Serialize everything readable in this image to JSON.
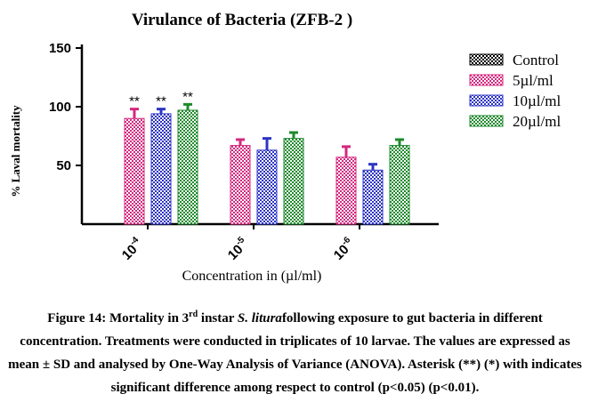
{
  "chart_data": {
    "type": "bar",
    "title": "Virulance of Bacteria (ZFB-2 )",
    "xlabel": "Concentration in (µl/ml)",
    "ylabel": "% Laval mortality",
    "ylim": [
      0,
      150
    ],
    "yticks": [
      "50",
      "100",
      "150"
    ],
    "categories": [
      {
        "base": "10",
        "exp": "-4"
      },
      {
        "base": "10",
        "exp": "-5"
      },
      {
        "base": "10",
        "exp": "-6"
      }
    ],
    "series": [
      {
        "name": "Control",
        "color": "#000000",
        "values": [
          0,
          0,
          0
        ],
        "errors": [
          0,
          0,
          0
        ],
        "annotations": [
          "",
          "",
          ""
        ]
      },
      {
        "name": "5µl/ml",
        "color": "#d4287f",
        "values": [
          90,
          67,
          57
        ],
        "errors": [
          8,
          5,
          9
        ],
        "annotations": [
          "**",
          "",
          ""
        ]
      },
      {
        "name": "10µl/ml",
        "color": "#2d34c4",
        "values": [
          94,
          63,
          46
        ],
        "errors": [
          4,
          10,
          5
        ],
        "annotations": [
          "**",
          "",
          ""
        ]
      },
      {
        "name": "20µl/ml",
        "color": "#1e8a2c",
        "values": [
          97,
          73,
          67
        ],
        "errors": [
          5,
          5,
          5
        ],
        "annotations": [
          "**",
          "",
          ""
        ]
      }
    ],
    "legend_position": "right",
    "grid": false
  },
  "caption": {
    "fig_label": "Figure 14: Mortality in 3",
    "sup": "rd",
    "part2": " instar ",
    "species": "S. litura",
    "part3": "following exposure to gut bacteria in different concentration. Treatments were conducted in triplicates of 10 larvae. The values are expressed as mean ± SD and analysed by One-Way Analysis of Variance (ANOVA). Asterisk (**) (*) with indicates significant difference among respect to control (p<0.05) (p<0.01)."
  }
}
